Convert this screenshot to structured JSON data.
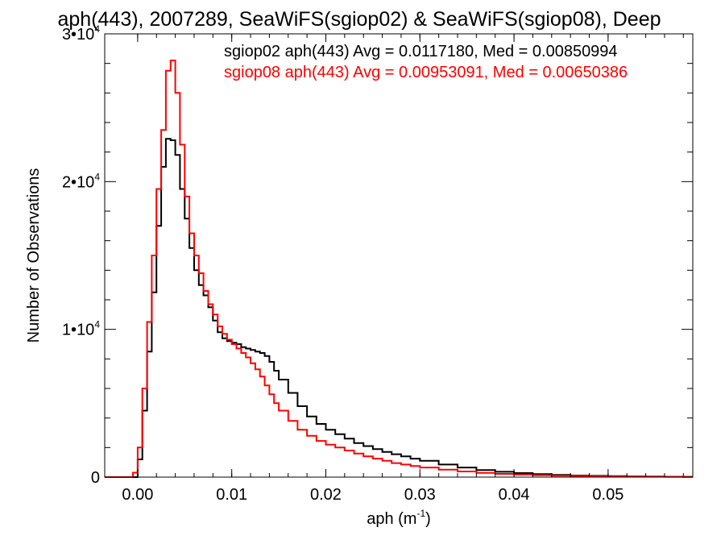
{
  "chart_data": {
    "type": "line",
    "title": "aph(443), 2007289, SeaWiFS(sgiop02) & SeaWiFS(sgiop08), Deep",
    "xlabel": "aph (m",
    "xlabel_sup": "-1",
    "xlabel_suffix": ")",
    "ylabel": "Number of Observations",
    "xlim": [
      -0.0035,
      0.059
    ],
    "ylim": [
      0,
      30000
    ],
    "grid": false,
    "x_ticks": [
      0.0,
      0.01,
      0.02,
      0.03,
      0.04,
      0.05
    ],
    "x_tick_labels": [
      "0.00",
      "0.01",
      "0.02",
      "0.03",
      "0.04",
      "0.05"
    ],
    "y_ticks": [
      {
        "value": 0,
        "label": "0",
        "sup": ""
      },
      {
        "value": 10000,
        "label": "1•10",
        "sup": "4"
      },
      {
        "value": 20000,
        "label": "2•10",
        "sup": "4"
      },
      {
        "value": 30000,
        "label": "3•10",
        "sup": "4"
      }
    ],
    "annotations": [
      {
        "text": "sgiop02 aph(443) Avg = 0.0117180, Med = 0.00850994",
        "color": "#000000"
      },
      {
        "text": "sgiop08 aph(443) Avg = 0.00953091, Med = 0.00650386",
        "color": "#ff0000"
      }
    ],
    "series": [
      {
        "color": "#000000",
        "x": [
          -0.0035,
          -0.0005,
          0.0,
          0.0005,
          0.001,
          0.0015,
          0.002,
          0.0025,
          0.003,
          0.0035,
          0.004,
          0.0045,
          0.005,
          0.0055,
          0.006,
          0.0065,
          0.007,
          0.0075,
          0.008,
          0.0085,
          0.009,
          0.0095,
          0.01,
          0.0105,
          0.011,
          0.0115,
          0.012,
          0.0125,
          0.013,
          0.0135,
          0.014,
          0.0145,
          0.015,
          0.016,
          0.017,
          0.018,
          0.019,
          0.02,
          0.021,
          0.022,
          0.023,
          0.024,
          0.025,
          0.026,
          0.027,
          0.028,
          0.029,
          0.03,
          0.032,
          0.034,
          0.036,
          0.038,
          0.04,
          0.042,
          0.044,
          0.046,
          0.048,
          0.05,
          0.052,
          0.054,
          0.056,
          0.058,
          0.059
        ],
        "y": [
          0,
          0,
          1200,
          4500,
          8500,
          12500,
          17000,
          21000,
          22900,
          22800,
          21800,
          19500,
          17500,
          15500,
          14000,
          13000,
          12300,
          11500,
          10600,
          9800,
          9400,
          9200,
          9100,
          9000,
          8800,
          8700,
          8600,
          8500,
          8400,
          8200,
          7800,
          7200,
          6600,
          5700,
          4800,
          4100,
          3600,
          3200,
          2900,
          2600,
          2300,
          2100,
          1900,
          1700,
          1550,
          1400,
          1250,
          1100,
          850,
          650,
          480,
          360,
          270,
          200,
          150,
          110,
          90,
          70,
          50,
          40,
          30,
          20,
          20
        ]
      },
      {
        "color": "#ff0000",
        "x": [
          -0.0035,
          -0.001,
          -0.0005,
          0.0,
          0.0005,
          0.001,
          0.0015,
          0.002,
          0.0025,
          0.003,
          0.0035,
          0.004,
          0.0045,
          0.005,
          0.0055,
          0.006,
          0.0065,
          0.007,
          0.0075,
          0.008,
          0.0085,
          0.009,
          0.0095,
          0.01,
          0.0105,
          0.011,
          0.0115,
          0.012,
          0.0125,
          0.013,
          0.0135,
          0.014,
          0.0145,
          0.015,
          0.016,
          0.017,
          0.018,
          0.019,
          0.02,
          0.021,
          0.022,
          0.023,
          0.024,
          0.025,
          0.026,
          0.027,
          0.028,
          0.029,
          0.03,
          0.032,
          0.034,
          0.036,
          0.038,
          0.04,
          0.042,
          0.044,
          0.046,
          0.048,
          0.05,
          0.052,
          0.054,
          0.056,
          0.058,
          0.059
        ],
        "y": [
          0,
          0,
          300,
          2000,
          6000,
          10500,
          15000,
          19500,
          23500,
          27500,
          28200,
          26000,
          22500,
          19000,
          16500,
          15000,
          13800,
          12600,
          11700,
          11000,
          10200,
          9700,
          9300,
          9000,
          8700,
          8400,
          8100,
          7700,
          7300,
          6800,
          6200,
          5600,
          5000,
          4500,
          3800,
          3200,
          2800,
          2450,
          2200,
          2000,
          1800,
          1600,
          1400,
          1250,
          1100,
          950,
          850,
          750,
          650,
          500,
          380,
          290,
          220,
          170,
          130,
          100,
          80,
          60,
          45,
          35,
          25,
          20,
          15,
          15
        ]
      }
    ]
  }
}
